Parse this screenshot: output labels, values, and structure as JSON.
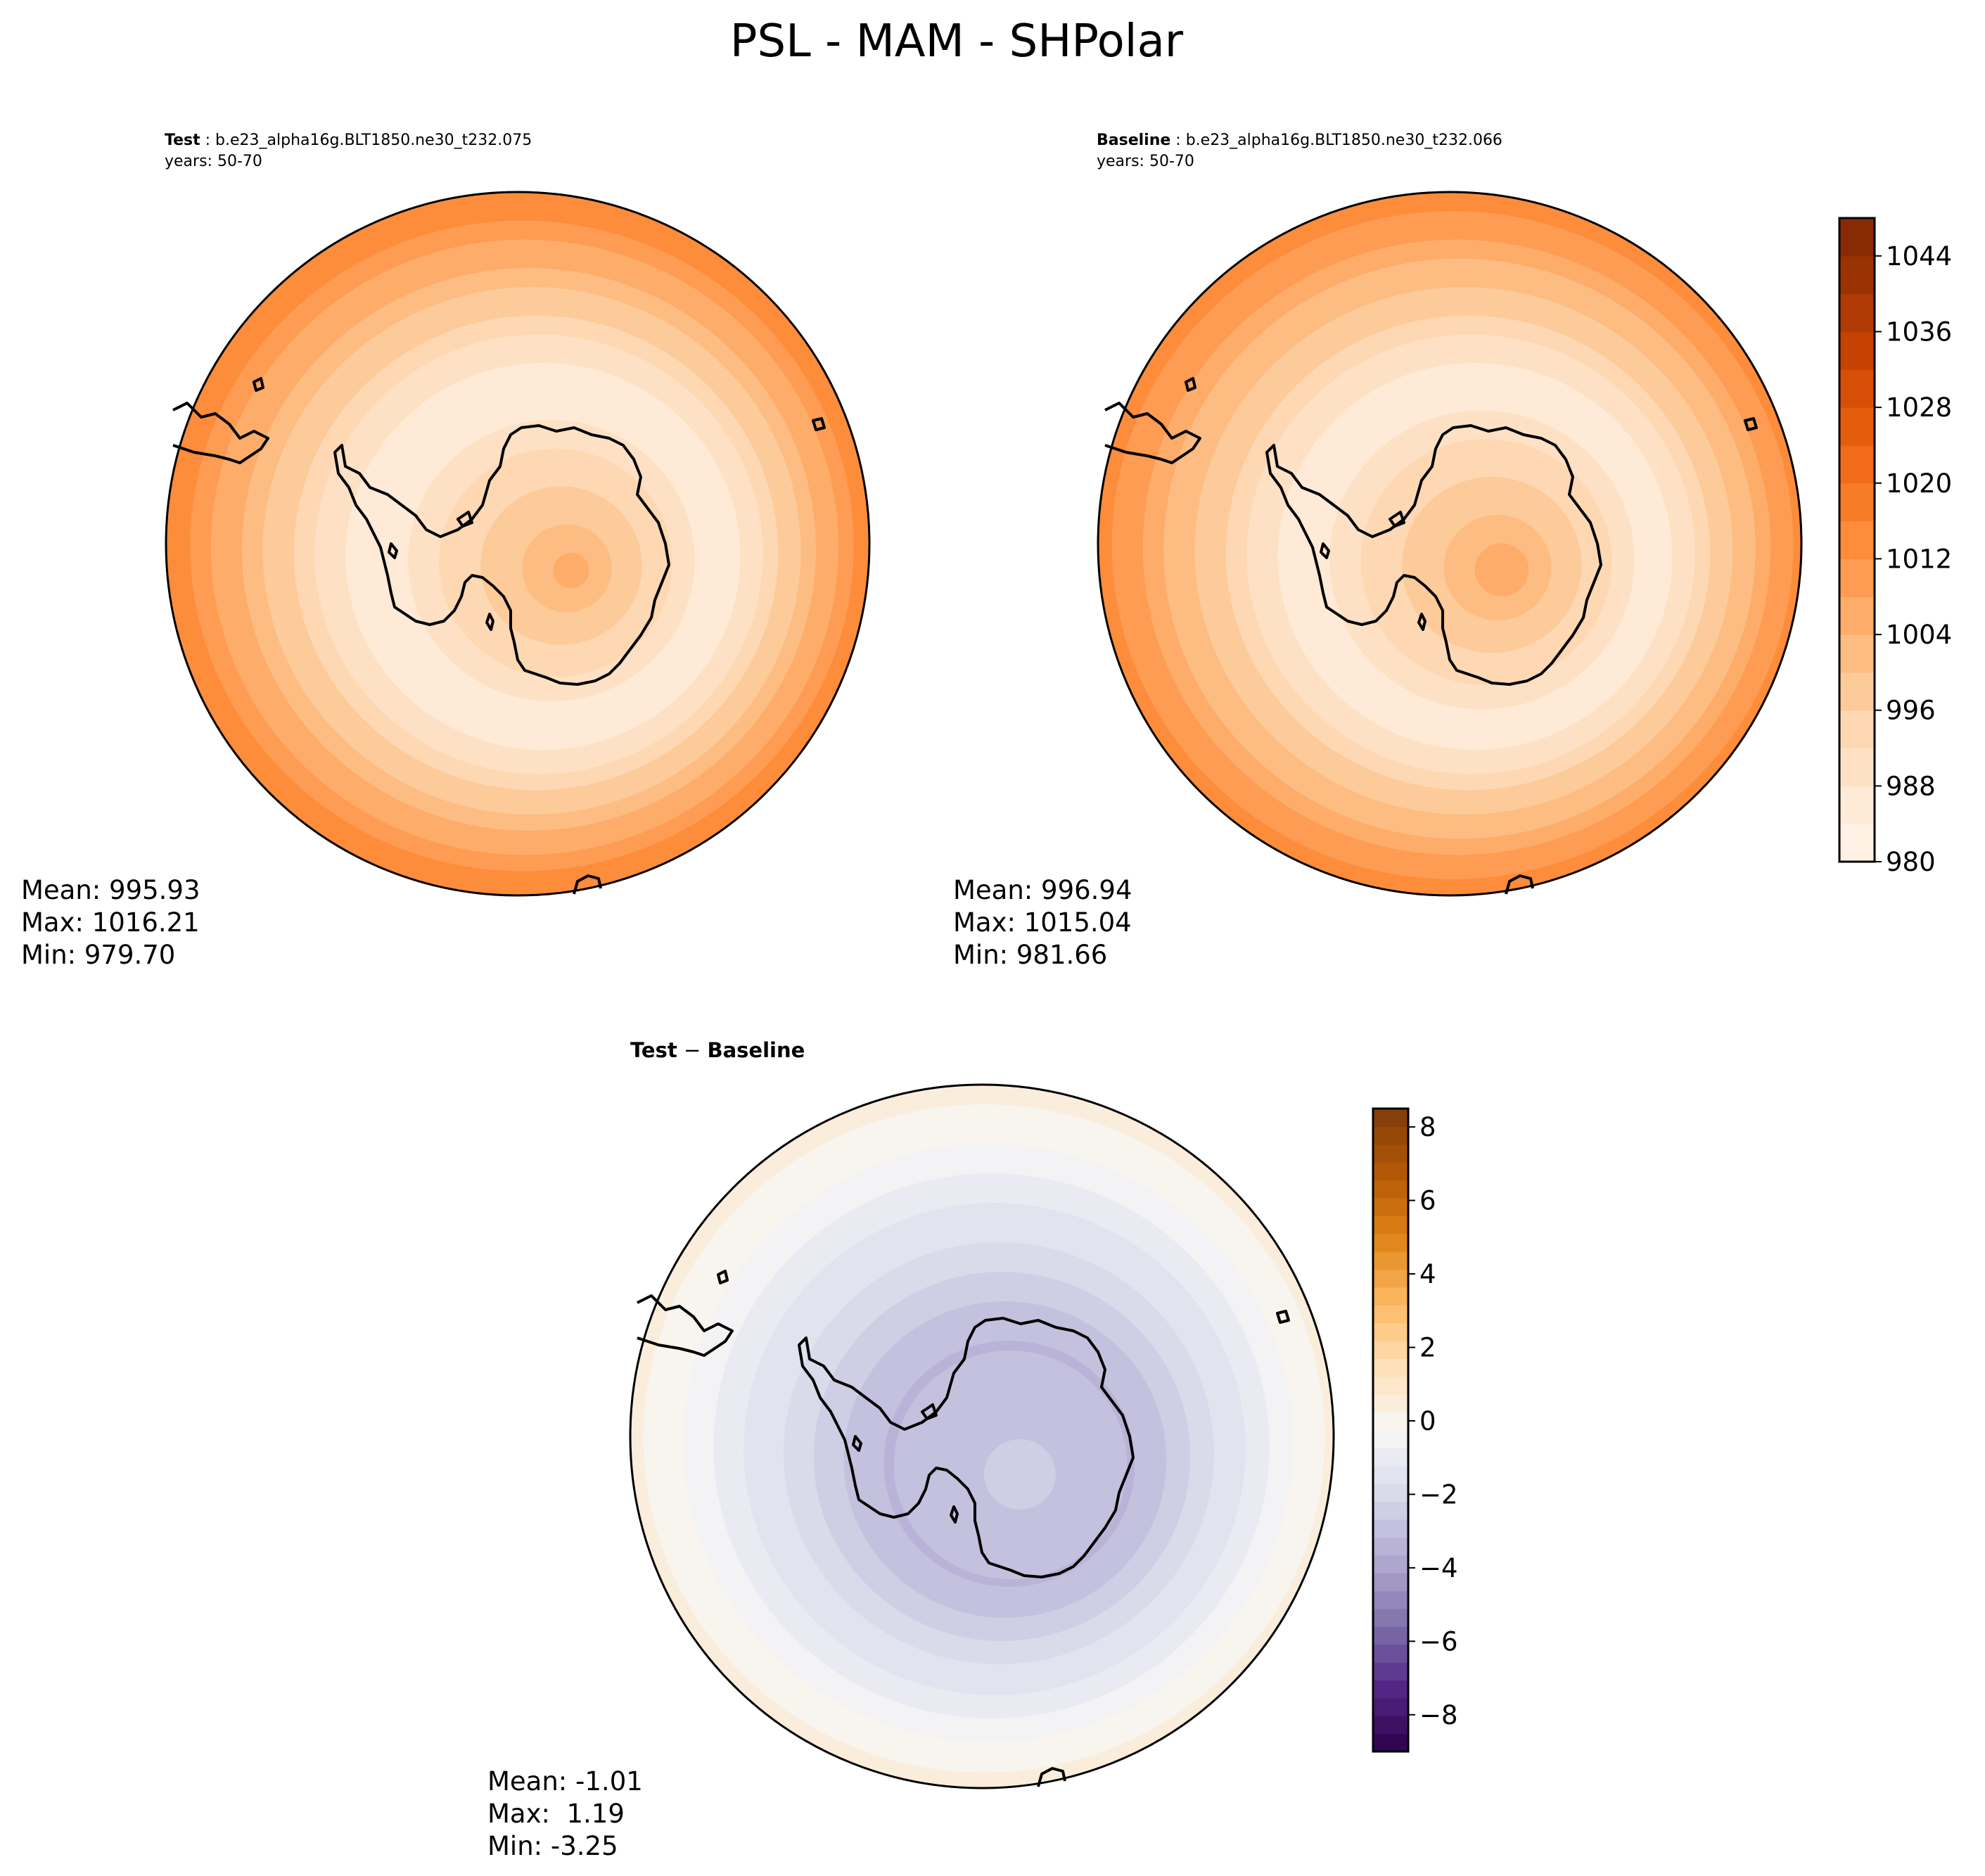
{
  "title": "PSL - MAM - SHPolar",
  "colors": {
    "oranges": [
      "#fff5eb",
      "#fee8d3",
      "#fdd9b4",
      "#fdc28c",
      "#fda762",
      "#fd8c3b",
      "#f4701b",
      "#e25609",
      "#c44103",
      "#9f3303",
      "#7f2704"
    ],
    "puor": [
      "#2d004b",
      "#542788",
      "#8073ac",
      "#b2abd2",
      "#d8daeb",
      "#f7f7f7",
      "#fee0b6",
      "#fdb863",
      "#e08214",
      "#b35806",
      "#7f3b08"
    ],
    "coast": "#000000"
  },
  "chart_data": [
    {
      "type": "heatmap",
      "panel": "test",
      "title_bold": "Test",
      "title_rest": " : b.e23_alpha16g.BLT1850.ne30_t232.075",
      "subtitle": "years: 50-70",
      "projection": "south-polar-stereographic",
      "field": "PSL",
      "stats": {
        "mean": "Mean: 995.93",
        "max": "Max: 1016.21",
        "min": "Min: 979.70"
      },
      "field_profile": {
        "center": 1006,
        "trough": 984,
        "edge": 1016,
        "trough_radius_frac": 0.5
      }
    },
    {
      "type": "heatmap",
      "panel": "baseline",
      "title_bold": "Baseline",
      "title_rest": " : b.e23_alpha16g.BLT1850.ne30_t232.066",
      "subtitle": "years: 50-70",
      "projection": "south-polar-stereographic",
      "field": "PSL",
      "stats": {
        "mean": "Mean: 996.94",
        "max": "Max: 1015.04",
        "min": "Min: 981.66"
      },
      "field_profile": {
        "center": 1007,
        "trough": 985,
        "edge": 1015,
        "trough_radius_frac": 0.5
      }
    },
    {
      "type": "heatmap",
      "panel": "difference",
      "title_bold": "Test",
      "title_mid": " − ",
      "title_bold2": "Baseline",
      "projection": "south-polar-stereographic",
      "field": "PSL difference",
      "stats": {
        "mean": "Mean: -1.01",
        "max": "Max:  1.19",
        "min": "Min: -3.25"
      },
      "field_profile": {
        "center": -2.5,
        "trough": -3.2,
        "edge": 0.6,
        "trough_radius_frac": 0.35
      }
    }
  ],
  "colorbars": [
    {
      "name": "absolute",
      "range": [
        980,
        1048
      ],
      "levels": 17,
      "ticks": [
        {
          "value": 980,
          "label": "980"
        },
        {
          "value": 988,
          "label": "988"
        },
        {
          "value": 996,
          "label": "996"
        },
        {
          "value": 1004,
          "label": "1004"
        },
        {
          "value": 1012,
          "label": "1012"
        },
        {
          "value": 1020,
          "label": "1020"
        },
        {
          "value": 1028,
          "label": "1028"
        },
        {
          "value": 1036,
          "label": "1036"
        },
        {
          "value": 1044,
          "label": "1044"
        }
      ]
    },
    {
      "name": "difference",
      "range": [
        -9,
        8.5
      ],
      "levels": 36,
      "ticks": [
        {
          "value": -8,
          "label": "−8"
        },
        {
          "value": -6,
          "label": "−6"
        },
        {
          "value": -4,
          "label": "−4"
        },
        {
          "value": -2,
          "label": "−2"
        },
        {
          "value": 0,
          "label": "0"
        },
        {
          "value": 2,
          "label": "2"
        },
        {
          "value": 4,
          "label": "4"
        },
        {
          "value": 6,
          "label": "6"
        },
        {
          "value": 8,
          "label": "8"
        }
      ]
    }
  ]
}
